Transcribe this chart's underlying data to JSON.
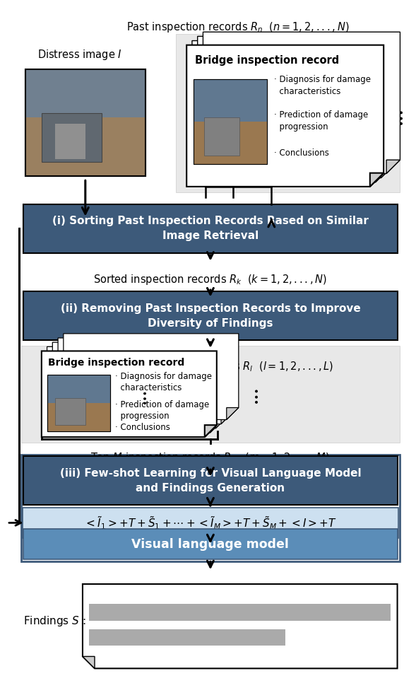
{
  "dark_blue": "#3d5a7a",
  "medium_blue": "#5b8db8",
  "light_blue": "#cde0f0",
  "light_gray_bg": "#e8e8e8",
  "gray_bar1": "#aaaaaa",
  "gray_bar2": "#aaaaaa",
  "white": "#ffffff",
  "black": "#000000",
  "box1_text": "(i) Sorting Past Inspection Records Based on Similar\nImage Retrieval",
  "box2_text": "(ii) Removing Past Inspection Records to Improve\nDiversity of Findings",
  "box3_text": "(iii) Few-shot Learning for Visual Language Model\nand Findings Generation",
  "vlm_text": "Visual language model",
  "record_title": "Bridge inspection record",
  "top_label": "Past inspection records $R_n$  $(n = 1,2,...,N)$",
  "distress_label": "Distress image $I$",
  "sorted_label": "Sorted inspection records $R_k$  $(k = 1,2,...,N)$",
  "reranked_label": "Re-ranked inspection records $R_l$  $(l = 1,2,...,L)$",
  "topM_label": "Top $M$ inspection records $R_m$  $(m = 1,2,...,M)$",
  "findings_label": "Findings $S$ :"
}
